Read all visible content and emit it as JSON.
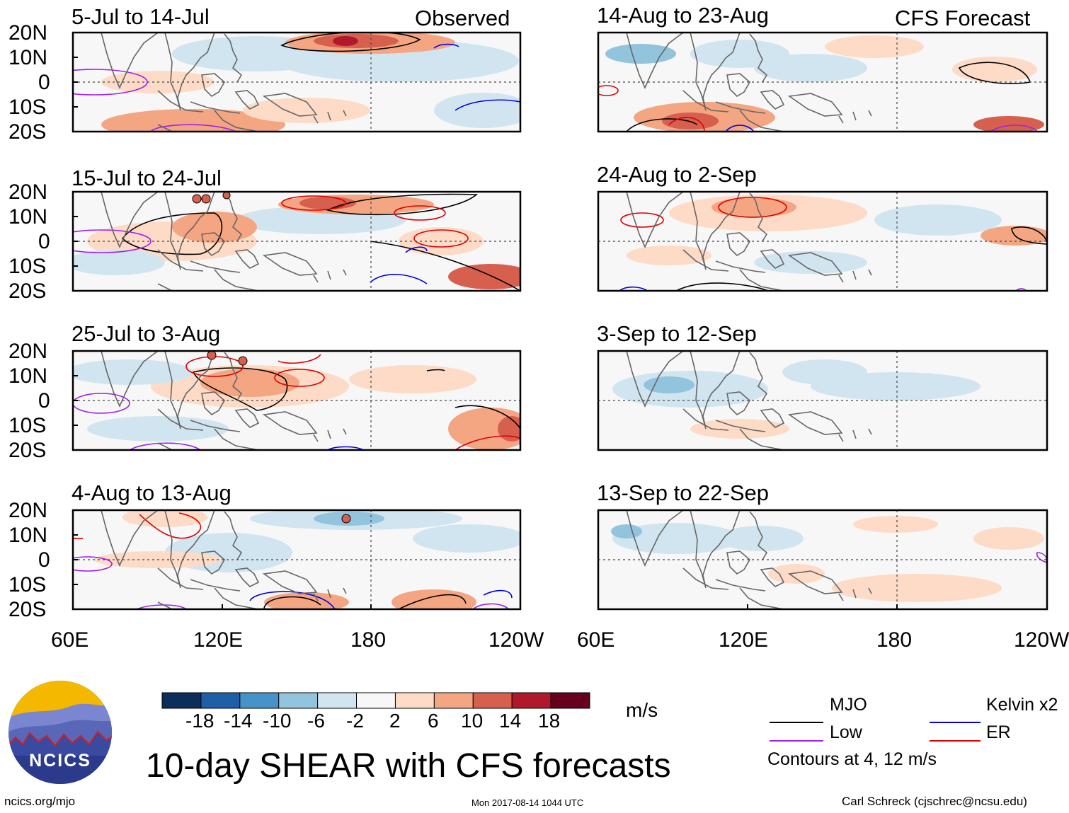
{
  "header": {
    "left_tag": "Observed",
    "right_tag": "CFS Forecast"
  },
  "panels": {
    "left": [
      {
        "title": "5-Jul to 14-Jul"
      },
      {
        "title": "15-Jul to 24-Jul"
      },
      {
        "title": "25-Jul to 3-Aug"
      },
      {
        "title": "4-Aug to 13-Aug"
      }
    ],
    "right": [
      {
        "title": "14-Aug to 23-Aug"
      },
      {
        "title": "24-Aug to 2-Sep"
      },
      {
        "title": "3-Sep to 12-Sep"
      },
      {
        "title": "13-Sep to 22-Sep"
      }
    ]
  },
  "axes": {
    "lat_labels": [
      "20N",
      "10N",
      "0",
      "10S",
      "20S"
    ],
    "lon_labels_left": [
      "60E",
      "120E",
      "180",
      "120W"
    ],
    "lon_labels_right": [
      "60E",
      "120E",
      "180",
      "120W"
    ]
  },
  "colorbar": {
    "unit": "m/s",
    "tick_labels": [
      "-18",
      "-14",
      "-10",
      "-6",
      "-2",
      "2",
      "6",
      "10",
      "14",
      "18"
    ],
    "colors": [
      "#0b2f5a",
      "#1f5fa8",
      "#4593c9",
      "#92c4de",
      "#d1e5f0",
      "#f7f7f7",
      "#fddbc7",
      "#f4a582",
      "#d6604d",
      "#b2182b",
      "#67001f"
    ]
  },
  "legend": {
    "items": [
      {
        "label": "MJO",
        "color": "#000000"
      },
      {
        "label": "Kelvin x2",
        "color": "#0000dd"
      },
      {
        "label": "Low",
        "color": "#a020f0"
      },
      {
        "label": "ER",
        "color": "#dd0000"
      }
    ],
    "contour_note": "Contours at 4, 12 m/s"
  },
  "title": "10-day SHEAR with CFS forecasts",
  "logo_text": "NCICS",
  "footer": {
    "site": "ncics.org/mjo",
    "timestamp": "Mon 2017-08-14 1044 UTC",
    "author": "Carl Schreck (cjschrec@ncsu.edu)"
  }
}
